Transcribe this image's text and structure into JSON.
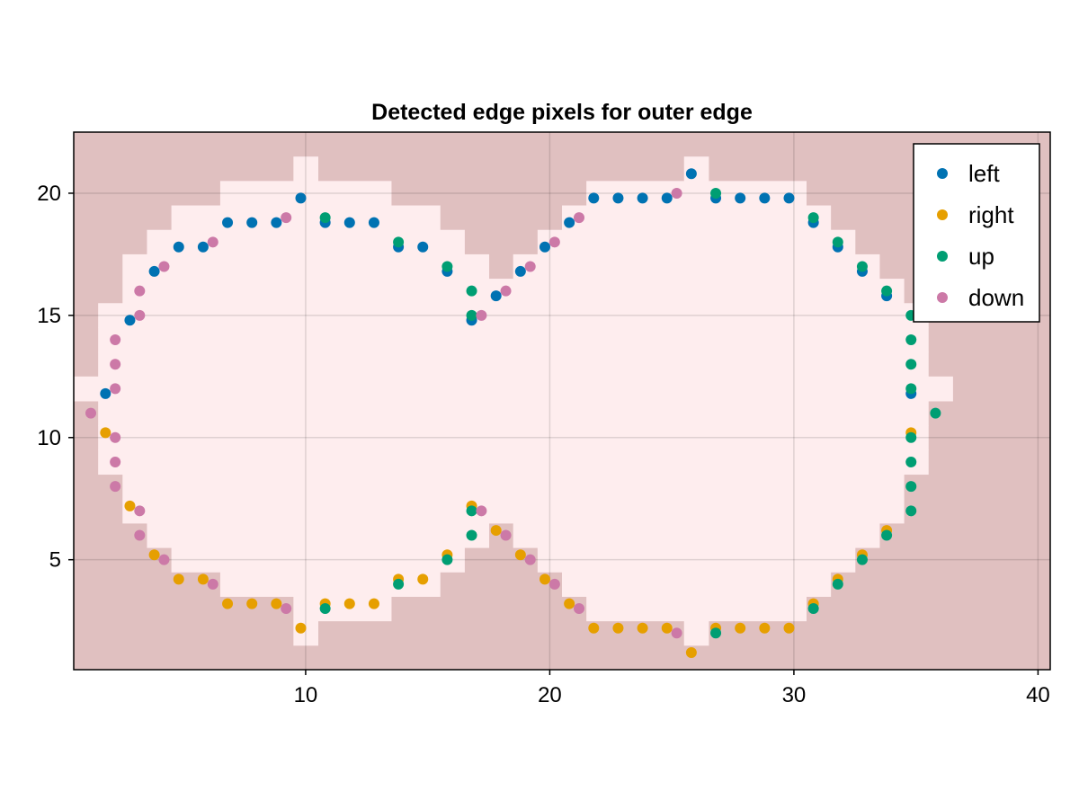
{
  "chart_data": {
    "type": "scatter",
    "title": "Detected edge pixels for outer edge",
    "xlabel": "",
    "ylabel": "",
    "xlim": [
      0.5,
      40.5
    ],
    "ylim": [
      0.5,
      22.5
    ],
    "xticks": [
      10,
      20,
      30,
      40
    ],
    "yticks": [
      5,
      10,
      15,
      20
    ],
    "grid": true,
    "legend_position": "top-right",
    "background_color": "#e0c0c0",
    "shape_fill_color": "#feedee",
    "shape_rows": [
      {
        "y": 2,
        "x0": 10,
        "x1": 10
      },
      {
        "y": 2,
        "x0": 26,
        "x1": 26
      },
      {
        "y": 3,
        "x0": 10,
        "x1": 13
      },
      {
        "y": 3,
        "x0": 22,
        "x1": 30
      },
      {
        "y": 4,
        "x0": 7,
        "x1": 15
      },
      {
        "y": 4,
        "x0": 21,
        "x1": 31
      },
      {
        "y": 5,
        "x0": 5,
        "x1": 16
      },
      {
        "y": 5,
        "x0": 20,
        "x1": 32
      },
      {
        "y": 6,
        "x0": 4,
        "x1": 17
      },
      {
        "y": 6,
        "x0": 19,
        "x1": 33
      },
      {
        "y": 7,
        "x0": 3,
        "x1": 34
      },
      {
        "y": 8,
        "x0": 3,
        "x1": 34
      },
      {
        "y": 9,
        "x0": 2,
        "x1": 35
      },
      {
        "y": 10,
        "x0": 2,
        "x1": 35
      },
      {
        "y": 11,
        "x0": 2,
        "x1": 35
      },
      {
        "y": 12,
        "x0": 1,
        "x1": 36
      },
      {
        "y": 13,
        "x0": 2,
        "x1": 35
      },
      {
        "y": 14,
        "x0": 2,
        "x1": 35
      },
      {
        "y": 15,
        "x0": 2,
        "x1": 35
      },
      {
        "y": 16,
        "x0": 3,
        "x1": 34
      },
      {
        "y": 17,
        "x0": 3,
        "x1": 17
      },
      {
        "y": 17,
        "x0": 19,
        "x1": 33
      },
      {
        "y": 18,
        "x0": 4,
        "x1": 16
      },
      {
        "y": 18,
        "x0": 20,
        "x1": 32
      },
      {
        "y": 19,
        "x0": 5,
        "x1": 15
      },
      {
        "y": 19,
        "x0": 21,
        "x1": 31
      },
      {
        "y": 20,
        "x0": 7,
        "x1": 13
      },
      {
        "y": 20,
        "x0": 22,
        "x1": 30
      },
      {
        "y": 21,
        "x0": 10,
        "x1": 10
      },
      {
        "y": 21,
        "x0": 26,
        "x1": 26
      }
    ],
    "series": [
      {
        "name": "left",
        "color": "#0072b2",
        "points": [
          [
            1.8,
            11.8
          ],
          [
            2.8,
            14.8
          ],
          [
            3.8,
            16.8
          ],
          [
            4.8,
            17.8
          ],
          [
            5.8,
            17.8
          ],
          [
            6.8,
            18.8
          ],
          [
            7.8,
            18.8
          ],
          [
            8.8,
            18.8
          ],
          [
            9.8,
            19.8
          ],
          [
            10.8,
            18.8
          ],
          [
            11.8,
            18.8
          ],
          [
            12.8,
            18.8
          ],
          [
            13.8,
            17.8
          ],
          [
            14.8,
            17.8
          ],
          [
            15.8,
            16.8
          ],
          [
            16.8,
            14.8
          ],
          [
            17.8,
            15.8
          ],
          [
            18.8,
            16.8
          ],
          [
            19.8,
            17.8
          ],
          [
            20.8,
            18.8
          ],
          [
            21.8,
            19.8
          ],
          [
            22.8,
            19.8
          ],
          [
            23.8,
            19.8
          ],
          [
            24.8,
            19.8
          ],
          [
            25.8,
            20.8
          ],
          [
            26.8,
            19.8
          ],
          [
            27.8,
            19.8
          ],
          [
            28.8,
            19.8
          ],
          [
            29.8,
            19.8
          ],
          [
            30.8,
            18.8
          ],
          [
            31.8,
            17.8
          ],
          [
            32.8,
            16.8
          ],
          [
            33.8,
            15.8
          ],
          [
            34.8,
            11.8
          ]
        ]
      },
      {
        "name": "right",
        "color": "#e69f00",
        "points": [
          [
            1.8,
            10.2
          ],
          [
            2.8,
            7.2
          ],
          [
            3.8,
            5.2
          ],
          [
            4.8,
            4.2
          ],
          [
            5.8,
            4.2
          ],
          [
            6.8,
            3.2
          ],
          [
            7.8,
            3.2
          ],
          [
            8.8,
            3.2
          ],
          [
            9.8,
            2.2
          ],
          [
            10.8,
            3.2
          ],
          [
            11.8,
            3.2
          ],
          [
            12.8,
            3.2
          ],
          [
            13.8,
            4.2
          ],
          [
            14.8,
            4.2
          ],
          [
            15.8,
            5.2
          ],
          [
            16.8,
            7.2
          ],
          [
            17.8,
            6.2
          ],
          [
            18.8,
            5.2
          ],
          [
            19.8,
            4.2
          ],
          [
            20.8,
            3.2
          ],
          [
            21.8,
            2.2
          ],
          [
            22.8,
            2.2
          ],
          [
            23.8,
            2.2
          ],
          [
            24.8,
            2.2
          ],
          [
            25.8,
            1.2
          ],
          [
            26.8,
            2.2
          ],
          [
            27.8,
            2.2
          ],
          [
            28.8,
            2.2
          ],
          [
            29.8,
            2.2
          ],
          [
            30.8,
            3.2
          ],
          [
            31.8,
            4.2
          ],
          [
            32.8,
            5.2
          ],
          [
            33.8,
            6.2
          ],
          [
            34.8,
            10.2
          ]
        ]
      },
      {
        "name": "up",
        "color": "#009e73",
        "points": [
          [
            10.8,
            19
          ],
          [
            13.8,
            18
          ],
          [
            15.8,
            17
          ],
          [
            16.8,
            16
          ],
          [
            16.8,
            15
          ],
          [
            26.8,
            20
          ],
          [
            30.8,
            19
          ],
          [
            31.8,
            18
          ],
          [
            32.8,
            17
          ],
          [
            33.8,
            16
          ],
          [
            34.8,
            15
          ],
          [
            34.8,
            14
          ],
          [
            34.8,
            13
          ],
          [
            34.8,
            12
          ],
          [
            35.8,
            11
          ],
          [
            34.8,
            10
          ],
          [
            34.8,
            9
          ],
          [
            34.8,
            8
          ],
          [
            34.8,
            7
          ],
          [
            33.8,
            6
          ],
          [
            32.8,
            5
          ],
          [
            31.8,
            4
          ],
          [
            30.8,
            3
          ],
          [
            26.8,
            2
          ],
          [
            16.8,
            7
          ],
          [
            16.8,
            6
          ],
          [
            15.8,
            5
          ],
          [
            13.8,
            4
          ],
          [
            10.8,
            3
          ]
        ]
      },
      {
        "name": "down",
        "color": "#cc79a7",
        "points": [
          [
            1.2,
            11
          ],
          [
            2.2,
            14
          ],
          [
            2.2,
            13
          ],
          [
            2.2,
            12
          ],
          [
            3.2,
            16
          ],
          [
            3.2,
            15
          ],
          [
            4.2,
            17
          ],
          [
            6.2,
            18
          ],
          [
            9.2,
            19
          ],
          [
            17.2,
            15
          ],
          [
            18.2,
            16
          ],
          [
            19.2,
            17
          ],
          [
            20.2,
            18
          ],
          [
            21.2,
            19
          ],
          [
            25.2,
            20
          ],
          [
            2.2,
            10
          ],
          [
            2.2,
            9
          ],
          [
            2.2,
            8
          ],
          [
            3.2,
            7
          ],
          [
            3.2,
            6
          ],
          [
            4.2,
            5
          ],
          [
            6.2,
            4
          ],
          [
            9.2,
            3
          ],
          [
            17.2,
            7
          ],
          [
            18.2,
            6
          ],
          [
            19.2,
            5
          ],
          [
            20.2,
            4
          ],
          [
            21.2,
            3
          ],
          [
            25.2,
            2
          ]
        ]
      }
    ]
  }
}
